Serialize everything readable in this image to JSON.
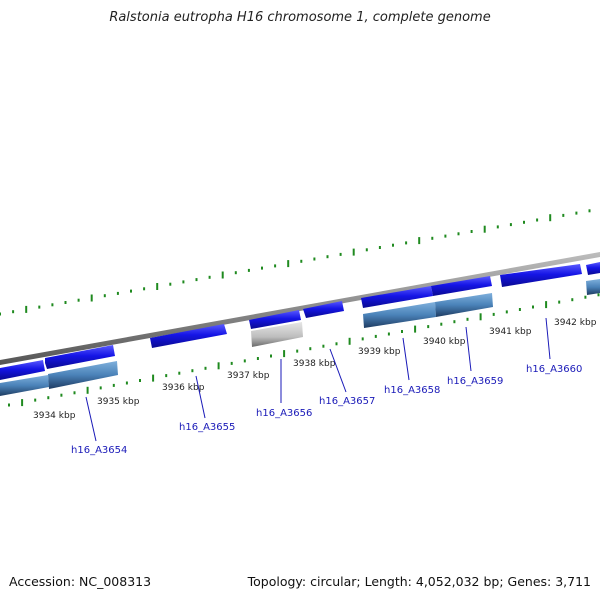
{
  "title": "Ralstonia eutropha H16 chromosome 1, complete genome",
  "footer": {
    "accession": "Accession: NC_008313",
    "summary": "Topology: circular; Length: 4,052,032 bp; Genes: 3,711"
  },
  "colors": {
    "backbone": "#8a8a8a",
    "cds": "#1515e6",
    "gene_bar": "#4a82b8",
    "pseudo": "#bdbdbd",
    "ticks": "#1f8a1f",
    "label": "#1a1ab8"
  },
  "kbp_labels": [
    "3934 kbp",
    "3935 kbp",
    "3936 kbp",
    "3937 kbp",
    "3938 kbp",
    "3939 kbp",
    "3940 kbp",
    "3941 kbp",
    "3942 kbp"
  ],
  "gene_labels": [
    "h16_A3654",
    "h16_A3655",
    "h16_A3656",
    "h16_A3657",
    "h16_A3658",
    "h16_A3659",
    "h16_A3660"
  ]
}
